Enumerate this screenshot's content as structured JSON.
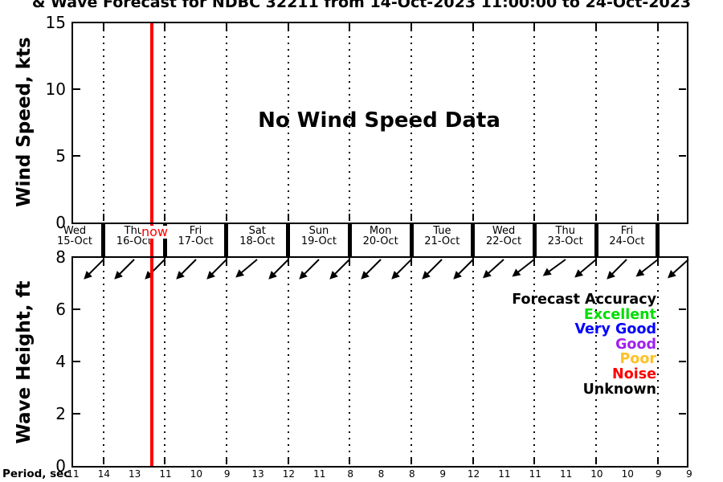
{
  "title": "& Wave Forecast for NDBC 32211 from 14-Oct-2023 11:00:00 to 24-Oct-2023",
  "wind_panel": {
    "ylabel": "Wind Speed, kts",
    "yticks": [
      "0",
      "5",
      "10",
      "15"
    ],
    "no_data_text": "No Wind Speed Data"
  },
  "timeline": {
    "now_label": "now",
    "days": [
      {
        "dow": "Wed",
        "date": "15-Oct"
      },
      {
        "dow": "Thu",
        "date": "16-Oct"
      },
      {
        "dow": "Fri",
        "date": "17-Oct"
      },
      {
        "dow": "Sat",
        "date": "18-Oct"
      },
      {
        "dow": "Sun",
        "date": "19-Oct"
      },
      {
        "dow": "Mon",
        "date": "20-Oct"
      },
      {
        "dow": "Tue",
        "date": "21-Oct"
      },
      {
        "dow": "Wed",
        "date": "22-Oct"
      },
      {
        "dow": "Thu",
        "date": "23-Oct"
      },
      {
        "dow": "Fri",
        "date": "24-Oct"
      }
    ]
  },
  "wave_panel": {
    "ylabel": "Wave Height, ft",
    "yticks": [
      "0",
      "2",
      "4",
      "6",
      "8"
    ],
    "arrow_angles_deg": [
      45,
      45,
      45,
      45,
      45,
      40,
      45,
      45,
      45,
      45,
      45,
      45,
      45,
      42,
      38,
      36,
      40,
      45,
      38,
      42
    ],
    "legend": {
      "title": "Forecast Accuracy",
      "entries": [
        {
          "label": "Excellent",
          "color": "#00DC00"
        },
        {
          "label": "Very Good",
          "color": "#0000FF"
        },
        {
          "label": "Good",
          "color": "#A020F0"
        },
        {
          "label": "Poor",
          "color": "#FFC125"
        },
        {
          "label": "Noise",
          "color": "#FF0000"
        },
        {
          "label": "Unknown",
          "color": "#000000"
        }
      ]
    }
  },
  "period_row": {
    "label": "Period, sec",
    "values": [
      11,
      14,
      13,
      11,
      10,
      9,
      13,
      12,
      11,
      8,
      8,
      8,
      9,
      12,
      11,
      11,
      11,
      10,
      10,
      9,
      9
    ]
  },
  "now_line_color": "#FF0000",
  "chart_data": {
    "type": "line",
    "title": "& Wave Forecast for NDBC 32211 from 14-Oct-2023 11:00:00 to 24-Oct-2023",
    "panels": [
      {
        "ylabel": "Wind Speed, kts",
        "ylim": [
          0,
          15
        ],
        "yticks": [
          0,
          5,
          10,
          15
        ],
        "annotation": "No Wind Speed Data",
        "series": []
      },
      {
        "ylabel": "Wave Height, ft",
        "ylim": [
          0,
          8
        ],
        "yticks": [
          0,
          2,
          4,
          6,
          8
        ],
        "series": [],
        "legend_title": "Forecast Accuracy",
        "legend": [
          "Excellent",
          "Very Good",
          "Good",
          "Poor",
          "Noise",
          "Unknown"
        ],
        "legend_position": "inside-right"
      }
    ],
    "x_axis": {
      "day_labels": [
        "Wed 15-Oct",
        "Thu 16-Oct",
        "Fri 17-Oct",
        "Sat 18-Oct",
        "Sun 19-Oct",
        "Mon 20-Oct",
        "Tue 21-Oct",
        "Wed 22-Oct",
        "Thu 23-Oct",
        "Fri 24-Oct"
      ],
      "grid": "vertical-dotted-at-day-boundaries",
      "now_marker": "red vertical line labeled now within 16-Oct"
    },
    "wave_direction_arrows": {
      "count": 20,
      "interval_hours": 12,
      "direction": "toward-southwest"
    },
    "period_sec": {
      "label": "Period, sec",
      "interval_hours": 12,
      "values": [
        11,
        14,
        13,
        11,
        10,
        9,
        13,
        12,
        11,
        8,
        8,
        8,
        9,
        12,
        11,
        11,
        11,
        10,
        10,
        9,
        9
      ]
    }
  }
}
